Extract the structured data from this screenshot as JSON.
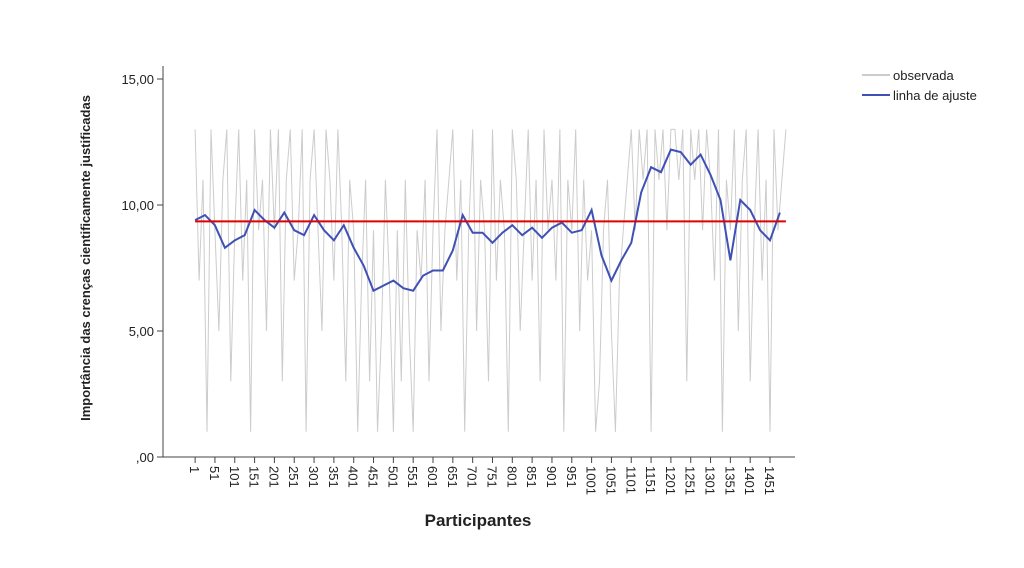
{
  "chart_data": {
    "type": "line",
    "ylabel": "Importância das crenças cientificamente justificadas",
    "xlabel": "Participantes",
    "xlim": [
      -80,
      1514
    ],
    "ylim": [
      0,
      15
    ],
    "xticks": [
      1,
      51,
      101,
      151,
      201,
      251,
      301,
      351,
      401,
      451,
      501,
      551,
      601,
      651,
      701,
      751,
      801,
      851,
      901,
      951,
      1001,
      1051,
      1101,
      1151,
      1201,
      1251,
      1301,
      1351,
      1401,
      1451
    ],
    "yticks": [
      {
        "value": 0,
        "label": ",00"
      },
      {
        "value": 5,
        "label": "5,00"
      },
      {
        "value": 10,
        "label": "10,00"
      },
      {
        "value": 15,
        "label": "15,00"
      }
    ],
    "legend": "top-right",
    "reference_line": {
      "value": 9.35,
      "color": "#e00000"
    },
    "series": [
      {
        "name": "observada",
        "color": "#cccccc",
        "x": [
          1,
          11,
          21,
          31,
          41,
          51,
          61,
          71,
          81,
          91,
          101,
          111,
          121,
          131,
          141,
          151,
          161,
          171,
          181,
          191,
          201,
          211,
          221,
          231,
          241,
          251,
          261,
          271,
          281,
          291,
          301,
          311,
          321,
          331,
          341,
          351,
          361,
          371,
          381,
          391,
          401,
          411,
          421,
          431,
          441,
          451,
          461,
          471,
          481,
          491,
          501,
          511,
          521,
          531,
          541,
          551,
          561,
          571,
          581,
          591,
          601,
          611,
          621,
          631,
          641,
          651,
          661,
          671,
          681,
          691,
          701,
          711,
          721,
          731,
          741,
          751,
          761,
          771,
          781,
          791,
          801,
          811,
          821,
          831,
          841,
          851,
          861,
          871,
          881,
          891,
          901,
          911,
          921,
          931,
          941,
          951,
          961,
          971,
          981,
          991,
          1001,
          1011,
          1021,
          1031,
          1041,
          1051,
          1061,
          1071,
          1081,
          1091,
          1101,
          1111,
          1121,
          1131,
          1141,
          1151,
          1161,
          1171,
          1181,
          1191,
          1201,
          1211,
          1221,
          1231,
          1241,
          1251,
          1261,
          1271,
          1281,
          1291,
          1301,
          1311,
          1321,
          1331,
          1341,
          1351,
          1361,
          1371,
          1381,
          1391,
          1401,
          1411,
          1421,
          1431,
          1441,
          1451,
          1461,
          1471,
          1481,
          1491
        ],
        "values": [
          13,
          7,
          11,
          1,
          13,
          9,
          5,
          11,
          13,
          3,
          9,
          13,
          7,
          11,
          1,
          13,
          9,
          11,
          5,
          13,
          9,
          13,
          3,
          11,
          13,
          7,
          9,
          13,
          1,
          11,
          13,
          9,
          5,
          13,
          11,
          7,
          13,
          9,
          3,
          11,
          9,
          1,
          7,
          11,
          3,
          9,
          1,
          5,
          11,
          7,
          1,
          9,
          3,
          11,
          5,
          1,
          9,
          7,
          11,
          3,
          9,
          13,
          5,
          9,
          11,
          13,
          7,
          11,
          1,
          9,
          13,
          5,
          11,
          9,
          3,
          13,
          7,
          11,
          9,
          1,
          13,
          11,
          5,
          9,
          13,
          7,
          11,
          3,
          13,
          9,
          11,
          7,
          13,
          1,
          11,
          9,
          13,
          5,
          11,
          7,
          9,
          1,
          3,
          9,
          11,
          5,
          1,
          7,
          9,
          11,
          13,
          9,
          13,
          11,
          13,
          1,
          13,
          11,
          13,
          9,
          13,
          13,
          11,
          13,
          3,
          13,
          11,
          13,
          9,
          13,
          11,
          7,
          13,
          1,
          11,
          9,
          13,
          5,
          11,
          13,
          3,
          9,
          13,
          7,
          11,
          1,
          13,
          9,
          11,
          13
        ]
      },
      {
        "name": "linha de ajuste",
        "color": "#3f51b5",
        "x": [
          1,
          26,
          51,
          76,
          101,
          126,
          151,
          176,
          201,
          226,
          251,
          276,
          301,
          326,
          351,
          376,
          401,
          426,
          451,
          476,
          501,
          526,
          551,
          576,
          601,
          626,
          651,
          676,
          701,
          726,
          751,
          776,
          801,
          826,
          851,
          876,
          901,
          926,
          951,
          976,
          1001,
          1026,
          1051,
          1076,
          1101,
          1126,
          1151,
          1176,
          1201,
          1226,
          1251,
          1276,
          1301,
          1326,
          1351,
          1376,
          1401,
          1426,
          1451,
          1476
        ],
        "values": [
          9.4,
          9.6,
          9.2,
          8.3,
          8.6,
          8.8,
          9.8,
          9.4,
          9.1,
          9.7,
          9.0,
          8.8,
          9.6,
          9.0,
          8.6,
          9.2,
          8.3,
          7.6,
          6.6,
          6.8,
          7.0,
          6.7,
          6.6,
          7.2,
          7.4,
          7.4,
          8.2,
          9.6,
          8.9,
          8.9,
          8.5,
          8.9,
          9.2,
          8.8,
          9.1,
          8.7,
          9.1,
          9.3,
          8.9,
          9.0,
          9.8,
          8.0,
          7.0,
          7.8,
          8.5,
          10.5,
          11.5,
          11.3,
          12.2,
          12.1,
          11.6,
          12.0,
          11.2,
          10.2,
          7.8,
          10.2,
          9.8,
          9.0,
          8.6,
          9.7
        ]
      }
    ]
  }
}
